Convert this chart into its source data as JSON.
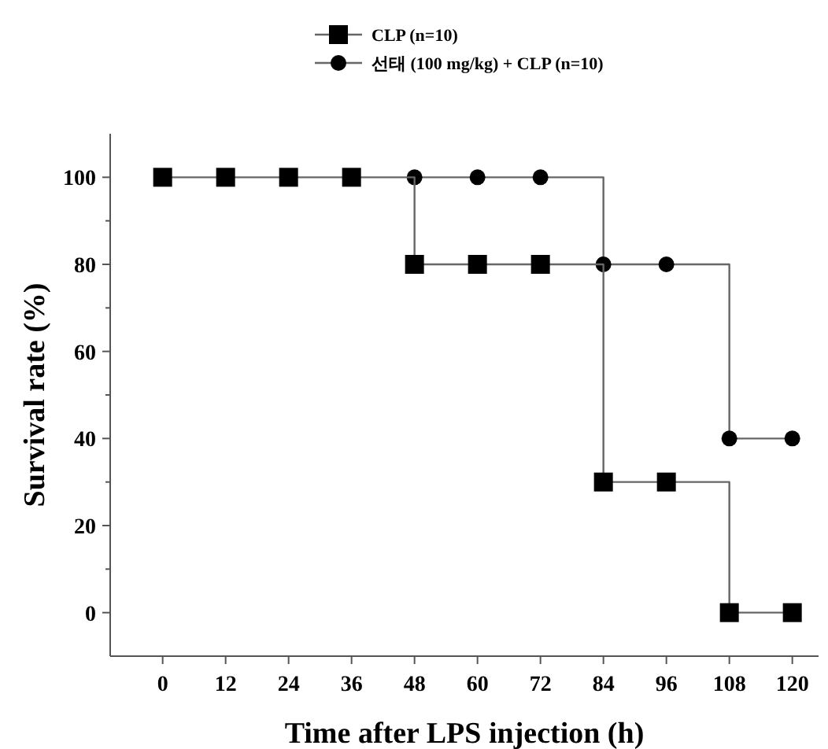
{
  "chart_data": {
    "type": "step",
    "xlabel": "Time after LPS injection (h)",
    "ylabel": "Survival rate (%)",
    "x": [
      0,
      12,
      24,
      36,
      48,
      60,
      72,
      84,
      96,
      108,
      120
    ],
    "series": [
      {
        "name": "CLP (n=10)",
        "color": "#000000",
        "marker": "square",
        "values": [
          100,
          100,
          100,
          100,
          80,
          80,
          80,
          30,
          30,
          0,
          0
        ]
      },
      {
        "name": "선태 (100 mg/kg) + CLP (n=10)",
        "color": "#000000",
        "marker": "circle",
        "values": [
          null,
          null,
          null,
          null,
          100,
          100,
          100,
          80,
          80,
          40,
          40
        ]
      }
    ],
    "xlim": [
      -10,
      125
    ],
    "ylim": [
      -10,
      110
    ],
    "xticks": [
      0,
      12,
      24,
      36,
      48,
      60,
      72,
      84,
      96,
      108,
      120
    ],
    "yticks": [
      0,
      {
        "value": 10,
        "label": null
      },
      20,
      {
        "value": 30,
        "label": null
      },
      40,
      {
        "value": 50,
        "label": null
      },
      60,
      {
        "value": 70,
        "label": null
      },
      80,
      {
        "value": 90,
        "label": null
      },
      100
    ],
    "grid": false,
    "legend": "top",
    "line_style": "solid"
  }
}
